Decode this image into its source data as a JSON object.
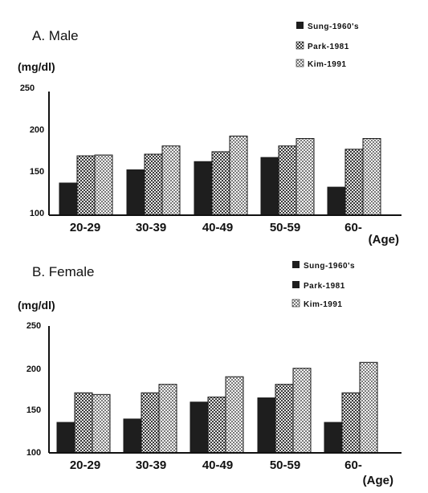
{
  "colors": {
    "sung": "#1e1e1e",
    "park": "#6e6e6e",
    "kim": "#b4b4b4"
  },
  "chart_data": [
    {
      "type": "bar",
      "title": "A. Male",
      "ylabel": "(mg/dl)",
      "xlabel": "(Age)",
      "ylim": [
        100,
        250
      ],
      "yticks": [
        "250",
        "200",
        "150",
        "100"
      ],
      "categories": [
        "20-29",
        "30-39",
        "40-49",
        "50-59",
        "60-"
      ],
      "legend_position": "top-right",
      "series": [
        {
          "name": "Sung-1960's",
          "values": [
            139,
            155,
            165,
            170,
            134
          ]
        },
        {
          "name": "Park-1981",
          "values": [
            172,
            174,
            177,
            184,
            180
          ]
        },
        {
          "name": "Kim-1991",
          "values": [
            173,
            184,
            196,
            193,
            193
          ]
        }
      ]
    },
    {
      "type": "bar",
      "title": "B. Female",
      "ylabel": "(mg/dl)",
      "xlabel": "(Age)",
      "ylim": [
        100,
        250
      ],
      "yticks": [
        "250",
        "200",
        "150",
        "100"
      ],
      "categories": [
        "20-29",
        "30-39",
        "40-49",
        "50-59",
        "60-"
      ],
      "legend_position": "top-right",
      "series": [
        {
          "name": "Sung-1960's",
          "values": [
            136,
            140,
            160,
            165,
            136
          ]
        },
        {
          "name": "Park-1981",
          "values": [
            171,
            171,
            166,
            181,
            171
          ]
        },
        {
          "name": "Kim-1991",
          "values": [
            169,
            181,
            190,
            200,
            207
          ]
        }
      ]
    }
  ]
}
